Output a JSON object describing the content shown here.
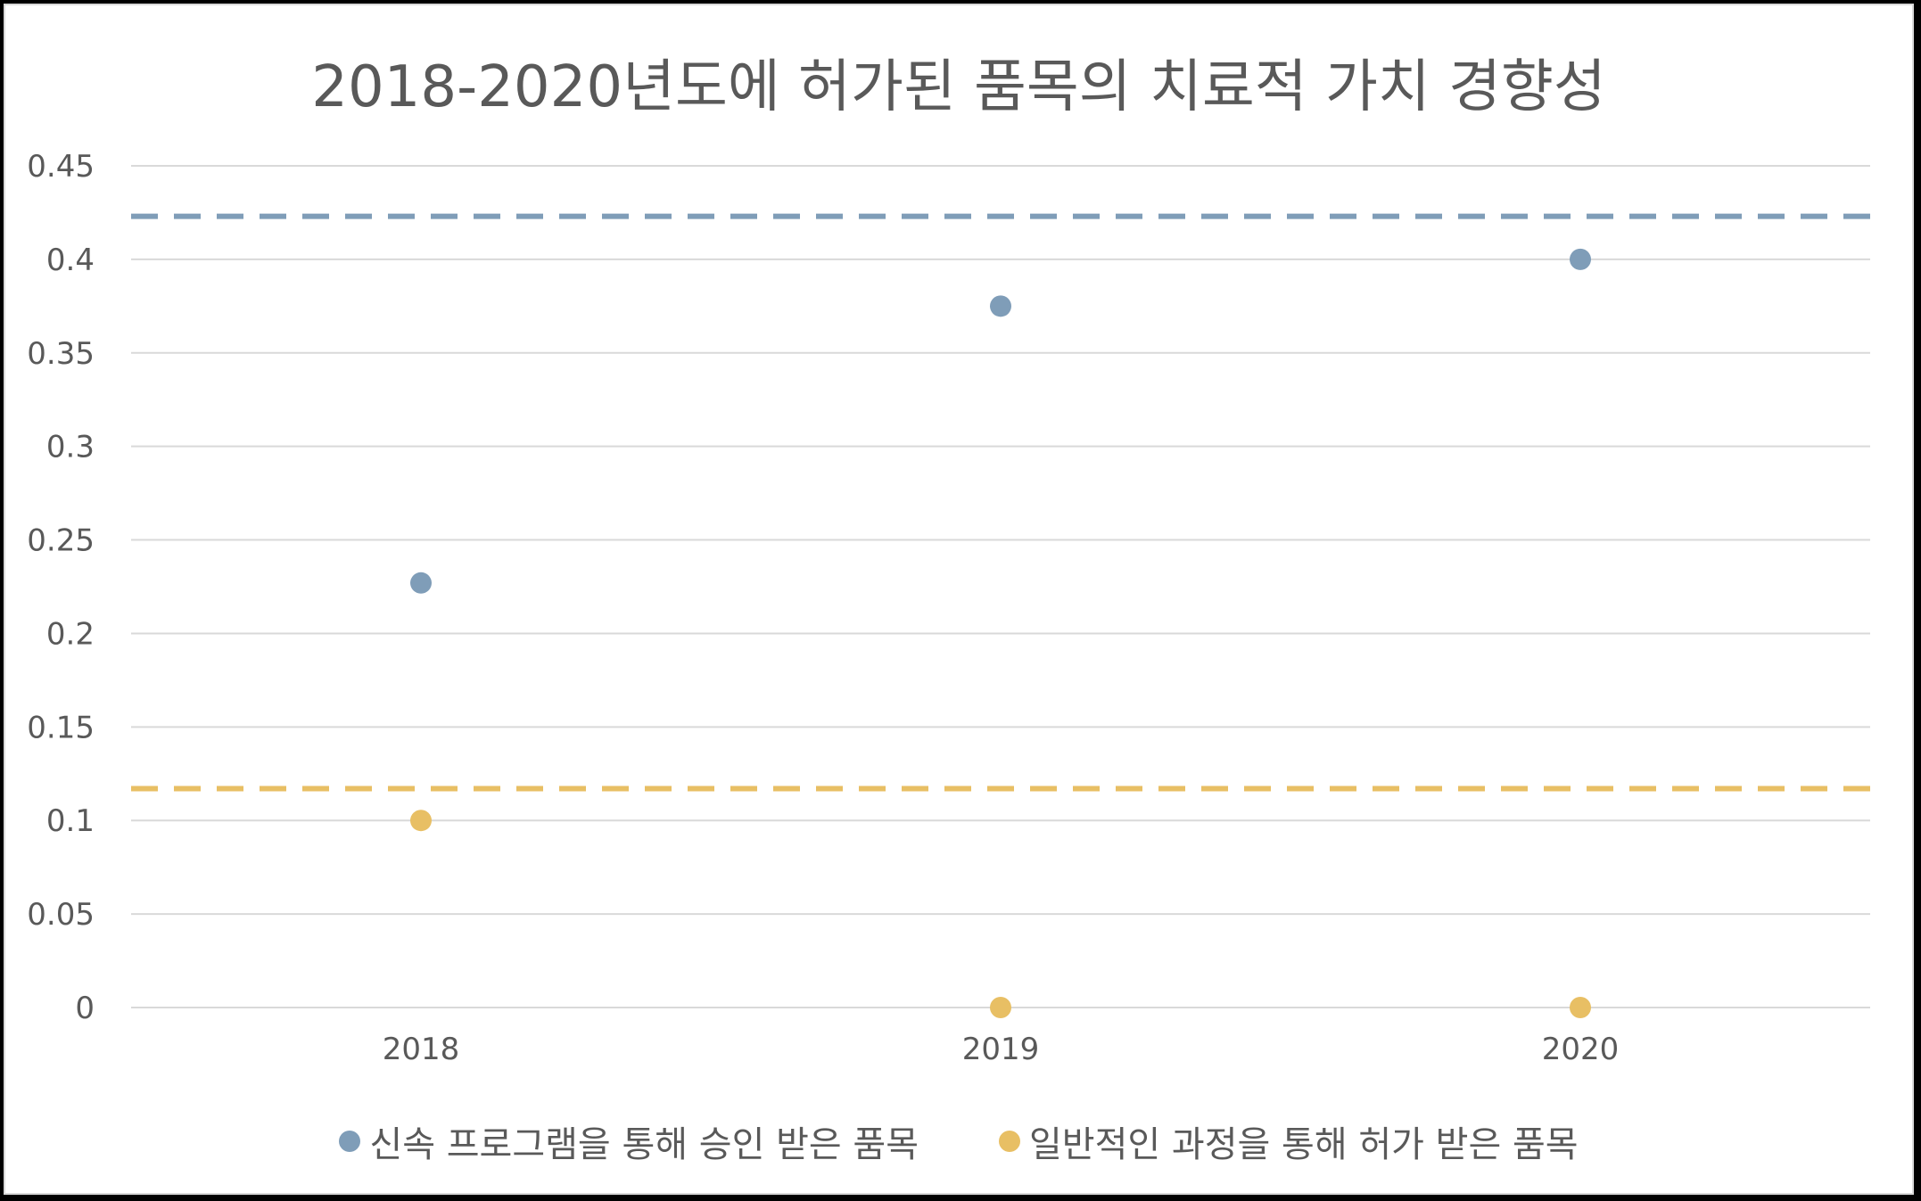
{
  "chart_data": {
    "type": "scatter",
    "title": "2018-2020년도에 허가된 품목의 치료적 가치 경향성",
    "xlabel": "",
    "ylabel": "",
    "categories": [
      "2018",
      "2019",
      "2020"
    ],
    "ylim": [
      0,
      0.45
    ],
    "yticks": [
      "0",
      "0.05",
      "0.1",
      "0.15",
      "0.2",
      "0.25",
      "0.3",
      "0.35",
      "0.4",
      "0.45"
    ],
    "grid": true,
    "legend_position": "bottom",
    "series": [
      {
        "name": "신속 프로그램을 통해 승인 받은 품목",
        "color": "#7f9db8",
        "values": [
          0.227,
          0.375,
          0.4
        ],
        "average_line": 0.423
      },
      {
        "name": "일반적인 과정을 통해 허가 받은 품목",
        "color": "#e8bf64",
        "values": [
          0.1,
          0,
          0
        ],
        "average_line": 0.117
      }
    ]
  }
}
